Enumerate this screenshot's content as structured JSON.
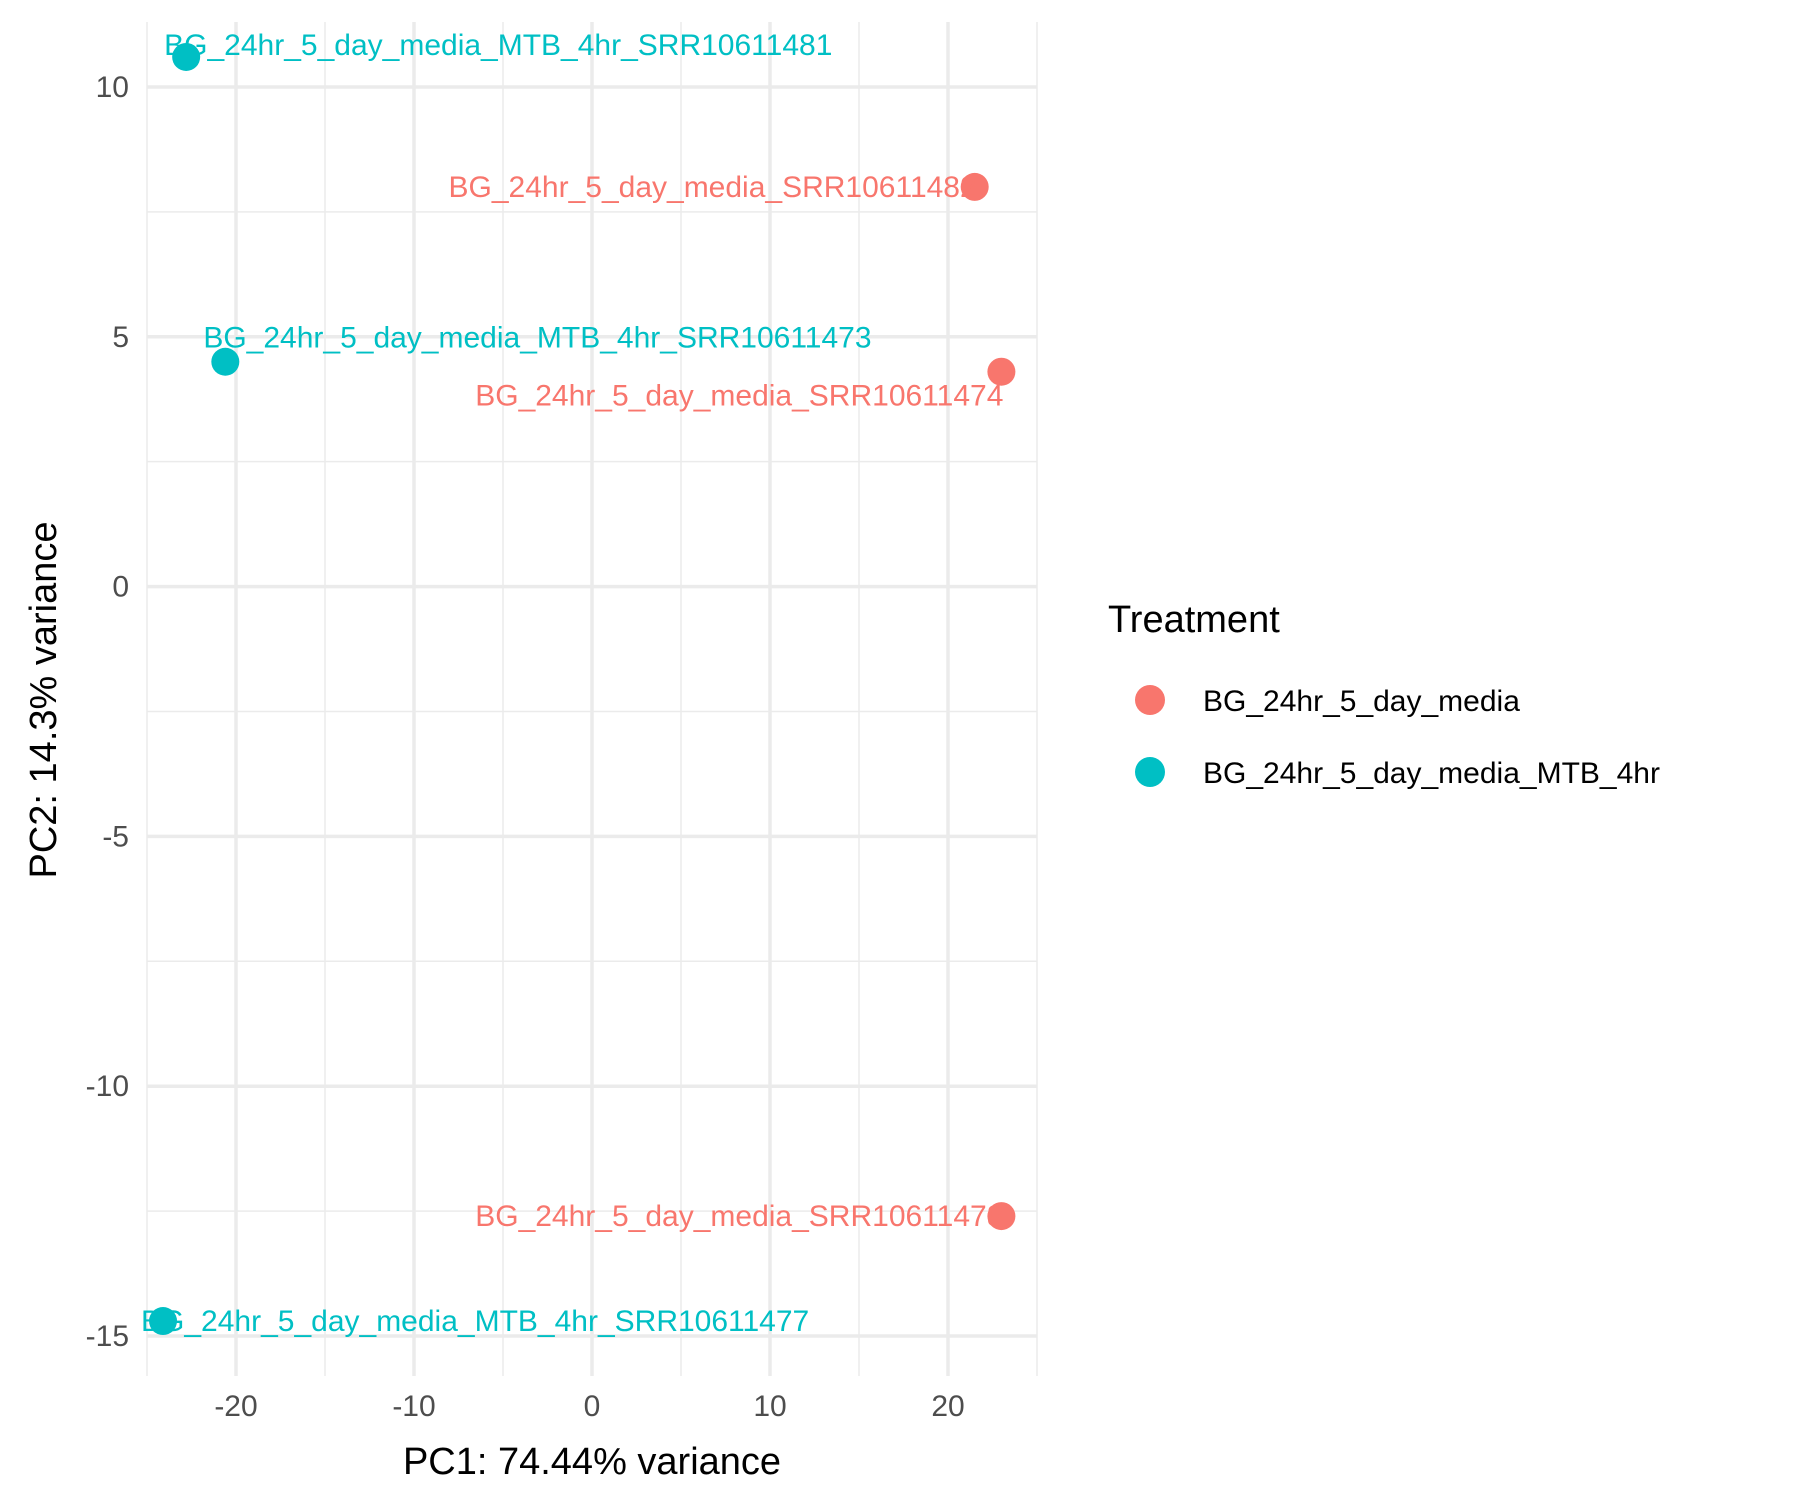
{
  "chart_data": {
    "type": "scatter",
    "xlabel": "PC1: 74.44% variance",
    "ylabel": "PC2: 14.3% variance",
    "xlim": [
      -25,
      25
    ],
    "ylim": [
      -15.8,
      11.3
    ],
    "x_major_ticks": [
      -20,
      -10,
      0,
      10,
      20
    ],
    "x_minor_ticks": [
      -25,
      -15,
      -5,
      5,
      15,
      25
    ],
    "y_major_ticks": [
      -15,
      -10,
      -5,
      0,
      5,
      10
    ],
    "y_minor_ticks": [
      -12.5,
      -7.5,
      -2.5,
      2.5,
      7.5
    ],
    "grid": true,
    "legend": {
      "title": "Treatment",
      "position": "right",
      "entries": [
        {
          "label": "BG_24hr_5_day_media",
          "color": "#F8766D"
        },
        {
          "label": "BG_24hr_5_day_media_MTB_4hr",
          "color": "#00BFC4"
        }
      ]
    },
    "series": [
      {
        "name": "BG_24hr_5_day_media",
        "color": "#F8766D",
        "points": [
          {
            "x": 21.5,
            "y": 8.0,
            "label": "BG_24hr_5_day_media_SRR10611482"
          },
          {
            "x": 23.0,
            "y": 4.3,
            "label": "BG_24hr_5_day_media_SRR10611474"
          },
          {
            "x": 23.0,
            "y": -12.6,
            "label": "BG_24hr_5_day_media_SRR10611478"
          }
        ]
      },
      {
        "name": "BG_24hr_5_day_media_MTB_4hr",
        "color": "#00BFC4",
        "points": [
          {
            "x": -22.8,
            "y": 10.6,
            "label": "BG_24hr_5_day_media_MTB_4hr_SRR10611481"
          },
          {
            "x": -20.6,
            "y": 4.5,
            "label": "BG_24hr_5_day_media_MTB_4hr_SRR10611473"
          },
          {
            "x": -24.1,
            "y": -14.7,
            "label": "BG_24hr_5_day_media_MTB_4hr_SRR10611477"
          }
        ]
      }
    ]
  }
}
